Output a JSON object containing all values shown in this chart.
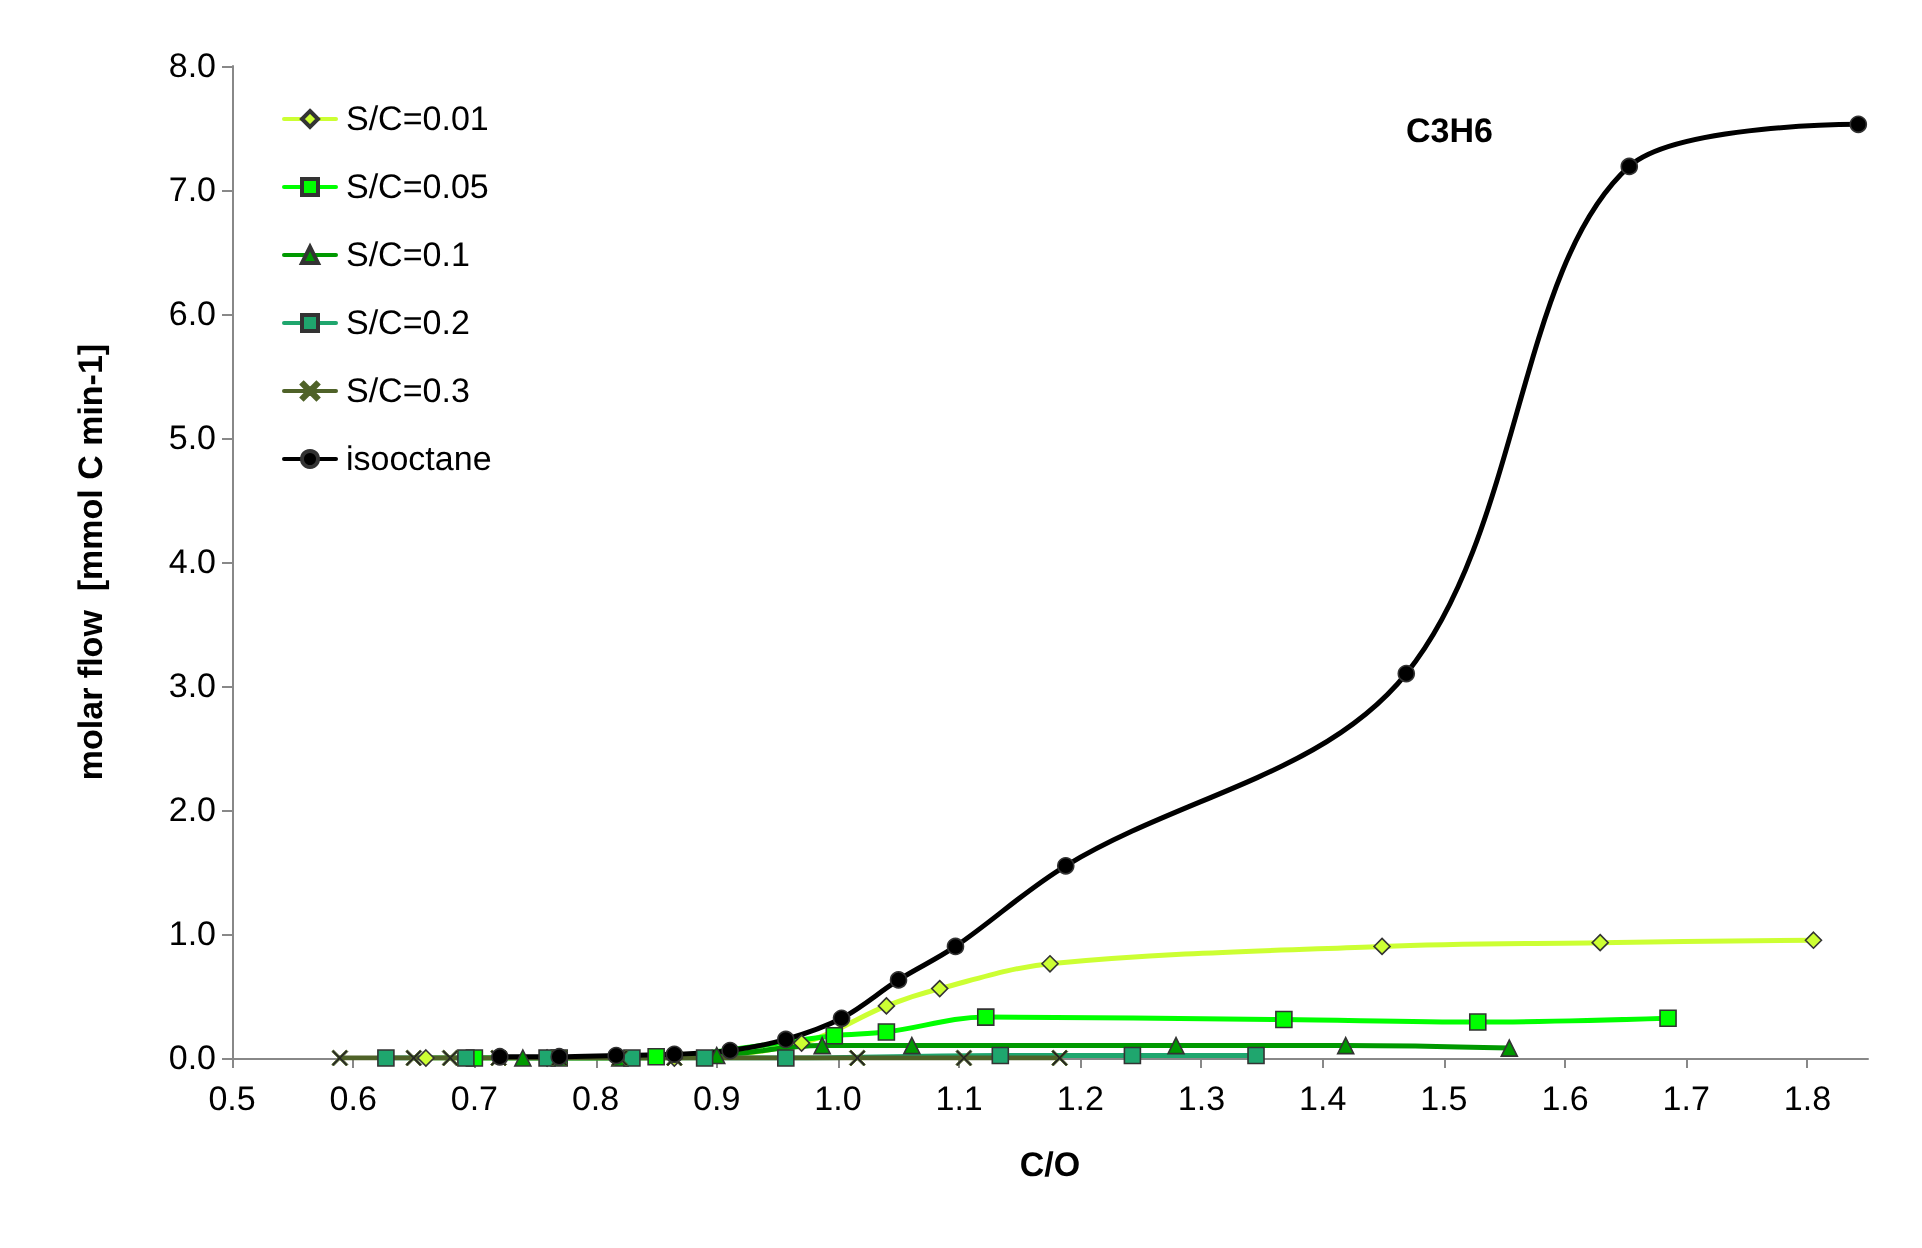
{
  "chart_data": {
    "type": "line",
    "title": "C3H6",
    "xlabel": "C/O",
    "ylabel": "molar flow  [mmol C min-1]",
    "xlim": [
      0.5,
      1.85
    ],
    "ylim": [
      0,
      8
    ],
    "xticks": [
      {
        "value": 0.5,
        "label": "0.5"
      },
      {
        "value": 0.6,
        "label": "0.6"
      },
      {
        "value": 0.7,
        "label": "0.7"
      },
      {
        "value": 0.8,
        "label": "0.8"
      },
      {
        "value": 0.9,
        "label": "0.9"
      },
      {
        "value": 1.0,
        "label": "1.0"
      },
      {
        "value": 1.1,
        "label": "1.1"
      },
      {
        "value": 1.2,
        "label": "1.2"
      },
      {
        "value": 1.3,
        "label": "1.3"
      },
      {
        "value": 1.4,
        "label": "1.4"
      },
      {
        "value": 1.5,
        "label": "1.5"
      },
      {
        "value": 1.6,
        "label": "1.6"
      },
      {
        "value": 1.7,
        "label": "1.7"
      },
      {
        "value": 1.8,
        "label": "1.8"
      }
    ],
    "yticks": [
      {
        "value": 0,
        "label": "0.0"
      },
      {
        "value": 1,
        "label": "1.0"
      },
      {
        "value": 2,
        "label": "2.0"
      },
      {
        "value": 3,
        "label": "3.0"
      },
      {
        "value": 4,
        "label": "4.0"
      },
      {
        "value": 5,
        "label": "5.0"
      },
      {
        "value": 6,
        "label": "6.0"
      },
      {
        "value": 7,
        "label": "7.0"
      },
      {
        "value": 8,
        "label": "8.0"
      }
    ],
    "grid": false,
    "legend": "top left",
    "line_style": "solid",
    "series": [
      {
        "name": "S/C=0.01",
        "color": "#ccff33",
        "marker": "diamond",
        "x": [
          0.66,
          0.76,
          0.865,
          0.97,
          1.04,
          1.084,
          1.175,
          1.449,
          1.629,
          1.805
        ],
        "values": [
          0.0,
          0.0,
          0.0,
          0.12,
          0.42,
          0.56,
          0.76,
          0.9,
          0.93,
          0.95
        ]
      },
      {
        "name": "S/C=0.05",
        "color": "#00ff00",
        "marker": "square",
        "x": [
          0.7,
          0.77,
          0.85,
          0.91,
          0.997,
          1.04,
          1.122,
          1.368,
          1.528,
          1.685
        ],
        "values": [
          0.0,
          0.0,
          0.01,
          null,
          0.18,
          0.21,
          0.33,
          0.31,
          0.29,
          0.32
        ]
      },
      {
        "name": "S/C=0.1",
        "color": "#009900",
        "marker": "triangle",
        "x": [
          0.74,
          0.82,
          0.9,
          0.987,
          1.061,
          1.279,
          1.419,
          1.554
        ],
        "values": [
          0.0,
          0.0,
          0.02,
          0.1,
          0.1,
          0.1,
          0.1,
          0.08
        ]
      },
      {
        "name": "S/C=0.2",
        "color": "#1fa66e",
        "marker": "square",
        "x": [
          0.627,
          0.693,
          0.76,
          0.83,
          0.89,
          0.957,
          1.134,
          1.243,
          1.345
        ],
        "values": [
          0.0,
          0.0,
          0.0,
          0.0,
          0.0,
          0.0,
          0.02,
          0.02,
          0.02
        ]
      },
      {
        "name": "S/C=0.3",
        "color": "#4f6228",
        "marker": "cross",
        "x": [
          0.589,
          0.65,
          0.68,
          0.72,
          0.77,
          0.82,
          0.865,
          1.016,
          1.104,
          1.183
        ],
        "values": [
          0.0,
          0.0,
          0.0,
          0.0,
          0.0,
          0.0,
          0.0,
          0.0,
          0.0,
          0.0
        ]
      },
      {
        "name": "isooctane",
        "color": "#000000",
        "marker": "circle",
        "x": [
          0.721,
          0.77,
          0.817,
          0.865,
          0.911,
          0.957,
          1.003,
          1.05,
          1.097,
          1.188,
          1.469,
          1.653,
          1.842
        ],
        "values": [
          0.01,
          0.01,
          0.02,
          0.03,
          0.06,
          0.15,
          0.32,
          0.63,
          0.9,
          1.55,
          3.1,
          7.19,
          7.53
        ]
      }
    ]
  }
}
